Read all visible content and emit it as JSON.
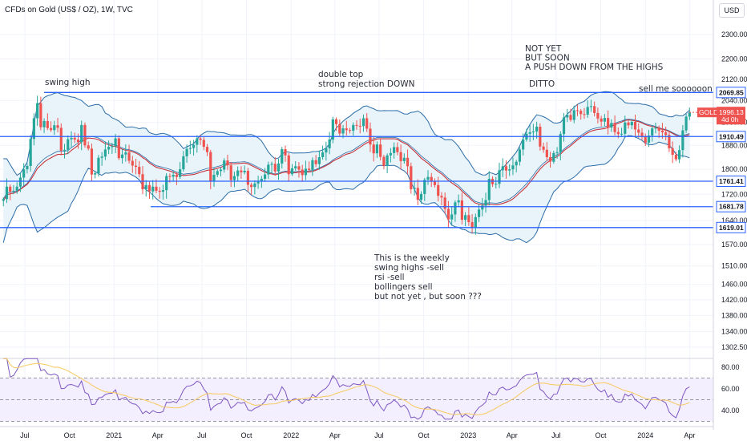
{
  "header": {
    "title": "CFDs on Gold (US$ / OZ), 1W, TVC",
    "currency": "USD"
  },
  "colors": {
    "up": "#26a69a",
    "down": "#ef5350",
    "level_line": "#2962ff",
    "bb_band": "#2b6ca8",
    "bb_fill": "#e8f4fa",
    "ma": "#c8333a",
    "rsi": "#7e57c2",
    "rsi_ma": "#f7c95c"
  },
  "chart_data": [
    {
      "type": "candlestick",
      "title": "CFDs on Gold (US$ / OZ), 1W, TVC",
      "yscale": "log",
      "ylim": [
        1280,
        2400
      ],
      "y_ticks": [
        2300,
        2200,
        2120,
        2040,
        1960,
        1880,
        1800,
        1720,
        1640,
        1570,
        1510,
        1460,
        1420,
        1380,
        1340,
        1302.5
      ],
      "x_ticks": [
        "Jul",
        "Oct",
        "2021",
        "Apr",
        "Jul",
        "Oct",
        "2022",
        "Apr",
        "Jul",
        "Oct",
        "2023",
        "Apr",
        "Jul",
        "Oct",
        "2024",
        "Apr"
      ],
      "x_tick_dates": [
        "2020-07-01",
        "2020-10-01",
        "2021-01-01",
        "2021-04-01",
        "2021-07-01",
        "2021-10-01",
        "2022-01-01",
        "2022-04-01",
        "2022-07-01",
        "2022-10-01",
        "2023-01-01",
        "2023-04-01",
        "2023-07-01",
        "2023-10-01",
        "2024-01-01",
        "2024-04-01"
      ],
      "x_range": [
        "2020-05-11",
        "2024-05-20"
      ],
      "weekly_close": [
        1705,
        1744,
        1728,
        1731,
        1744,
        1773,
        1800,
        1811,
        1902,
        1975,
        2030,
        1943,
        1965,
        1940,
        1933,
        1950,
        1941,
        1862,
        1865,
        1901,
        1906,
        1900,
        1891,
        1951,
        1880,
        1869,
        1783,
        1787,
        1838,
        1842,
        1866,
        1875,
        1877,
        1904,
        1837,
        1849,
        1856,
        1828,
        1812,
        1808,
        1784,
        1736,
        1749,
        1729,
        1744,
        1731,
        1728,
        1733,
        1778,
        1776,
        1782,
        1775,
        1800,
        1843,
        1868,
        1871,
        1882,
        1904,
        1899,
        1875,
        1857,
        1762,
        1782,
        1794,
        1799,
        1829,
        1813,
        1765,
        1778,
        1796,
        1790,
        1795,
        1750,
        1743,
        1754,
        1760,
        1769,
        1783,
        1815,
        1818,
        1793,
        1819,
        1867,
        1846,
        1784,
        1803,
        1810,
        1799,
        1781,
        1802,
        1798,
        1830,
        1817,
        1840,
        1856,
        1870,
        1900,
        1971,
        1954,
        1921,
        1939,
        1933,
        1931,
        1951,
        1948,
        1947,
        1975,
        1938,
        1883,
        1853,
        1883,
        1841,
        1811,
        1846,
        1854,
        1874,
        1857,
        1827,
        1838,
        1810,
        1736,
        1740,
        1703,
        1721,
        1766,
        1775,
        1760,
        1749,
        1715,
        1710,
        1675,
        1643,
        1658,
        1695,
        1701,
        1642,
        1656,
        1635,
        1618,
        1650,
        1673,
        1685,
        1702,
        1769,
        1752,
        1753,
        1797,
        1810,
        1796,
        1800,
        1813,
        1825,
        1866,
        1900,
        1920,
        1925,
        1928,
        1945,
        1876,
        1865,
        1840,
        1825,
        1854,
        1857,
        1919,
        1978,
        1987,
        1969,
        2004,
        2002,
        1990,
        1988,
        2016,
        2019,
        1994,
        1974,
        1963,
        1976,
        1942,
        1958,
        1926,
        1919,
        1920,
        1960,
        1950,
        1962,
        1935,
        1924,
        1912,
        1889,
        1914,
        1939,
        1941,
        1931,
        1925,
        1916,
        1870,
        1848,
        1833,
        1864,
        1932,
        1981,
        1996.13
      ]
    },
    {
      "type": "line",
      "title": "",
      "ylim": [
        30,
        88
      ],
      "y_ticks": [
        80.0,
        60.0,
        40.0
      ],
      "bands": [
        70,
        50,
        30
      ],
      "ticks_text": [
        "80.00",
        "60.00",
        "40.00"
      ]
    }
  ],
  "price_ticks_text": [
    "2300.00",
    "2200.00",
    "2120.00",
    "2040.00",
    "1960.00",
    "1880.00",
    "1800.00",
    "1720.00",
    "1640.00",
    "1570.00",
    "1510.00",
    "1460.00",
    "1420.00",
    "1380.00",
    "1340.00",
    "1302.50"
  ],
  "levels": [
    {
      "price": 2069.85,
      "label": "2069.85"
    },
    {
      "price": 1910.49,
      "label": "1910.49"
    },
    {
      "price": 1761.41,
      "label": "1761.41"
    },
    {
      "price": 1681.78,
      "label": "1681.78"
    },
    {
      "price": 1619.01,
      "label": "1619.01"
    }
  ],
  "last_price": {
    "symbol": "GOLD",
    "value": "1996.13",
    "countdown": "4d 0h"
  },
  "annotations": {
    "swing_high": "swing high",
    "double_top": [
      "double top",
      "strong rejection DOWN"
    ],
    "not_yet": [
      "NOT YET",
      "BUT SOON",
      "A PUSH DOWN FROM THE HIGHS"
    ],
    "ditto": "DITTO",
    "sell_me": "sell me soooooon",
    "weekly_notes": [
      "This is the weekly",
      "",
      "swing highs -sell",
      "rsi -sell",
      "bollingers sell",
      "",
      "but not yet , but soon ???"
    ]
  }
}
